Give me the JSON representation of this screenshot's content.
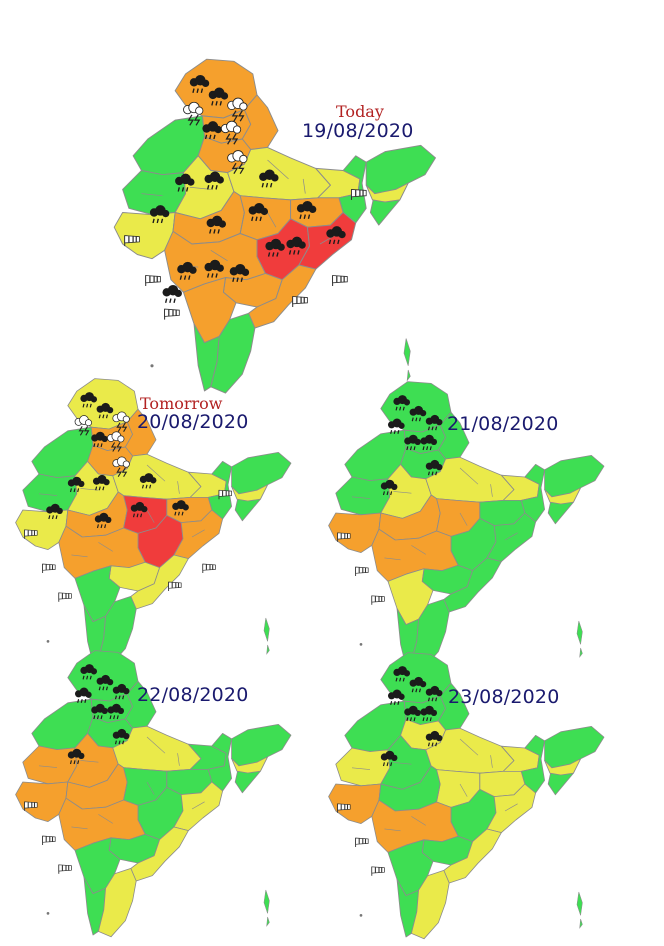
{
  "colors": {
    "green": "#3ede53",
    "yellow": "#eaea4a",
    "orange": "#f5a02d",
    "red": "#f03c3c",
    "border": "#8c8c8c",
    "date_text": "#1a1a6e",
    "today_text": "#b22222"
  },
  "icons": [
    "rain-cloud-icon",
    "thunderstorm-cloud-icon",
    "windsock-icon"
  ],
  "maps": [
    {
      "label": "Today",
      "date": "19/08/2020",
      "regions": {
        "kashmir": "orange",
        "himachal": "orange",
        "punjab": "green",
        "uttarakhand": "orange",
        "haryana_delhi": "orange",
        "rajasthan_w": "green",
        "rajasthan_e": "yellow",
        "up": "yellow",
        "bihar": "yellow",
        "sikkim_wb": "green",
        "gujarat": "yellow",
        "mp_w": "orange",
        "mp_e": "orange",
        "jharkhand": "orange",
        "chhattisgarh": "red",
        "odisha": "red",
        "maharashtra": "orange",
        "telangana": "orange",
        "andhra": "orange",
        "karnataka": "orange",
        "kerala": "green",
        "tamilnadu": "green",
        "northeast": "green",
        "assam_band": "yellow"
      }
    },
    {
      "label": "Tomorrow",
      "date": "20/08/2020",
      "regions": {
        "kashmir": "yellow",
        "himachal": "orange",
        "punjab": "green",
        "uttarakhand": "orange",
        "haryana_delhi": "orange",
        "rajasthan_w": "green",
        "rajasthan_e": "yellow",
        "up": "yellow",
        "bihar": "yellow",
        "sikkim_wb": "green",
        "gujarat": "yellow",
        "mp_w": "orange",
        "mp_e": "red",
        "jharkhand": "orange",
        "chhattisgarh": "red",
        "odisha": "orange",
        "maharashtra": "orange",
        "telangana": "yellow",
        "andhra": "yellow",
        "karnataka": "green",
        "kerala": "green",
        "tamilnadu": "green",
        "northeast": "green",
        "assam_band": "yellow"
      }
    },
    {
      "label": "",
      "date": "21/08/2020",
      "regions": {
        "kashmir": "green",
        "himachal": "green",
        "punjab": "green",
        "uttarakhand": "green",
        "haryana_delhi": "green",
        "rajasthan_w": "green",
        "rajasthan_e": "yellow",
        "up": "yellow",
        "bihar": "yellow",
        "sikkim_wb": "green",
        "gujarat": "orange",
        "mp_w": "orange",
        "mp_e": "orange",
        "jharkhand": "green",
        "chhattisgarh": "green",
        "odisha": "green",
        "maharashtra": "orange",
        "telangana": "green",
        "andhra": "green",
        "karnataka": "yellow",
        "kerala": "green",
        "tamilnadu": "green",
        "northeast": "green",
        "assam_band": "yellow"
      }
    },
    {
      "label": "",
      "date": "22/08/2020",
      "regions": {
        "kashmir": "green",
        "himachal": "green",
        "punjab": "green",
        "uttarakhand": "green",
        "haryana_delhi": "green",
        "rajasthan_w": "orange",
        "rajasthan_e": "orange",
        "up": "yellow",
        "bihar": "green",
        "sikkim_wb": "green",
        "gujarat": "orange",
        "mp_w": "orange",
        "mp_e": "green",
        "jharkhand": "green",
        "chhattisgarh": "green",
        "odisha": "yellow",
        "maharashtra": "orange",
        "telangana": "green",
        "andhra": "yellow",
        "karnataka": "green",
        "kerala": "green",
        "tamilnadu": "yellow",
        "northeast": "green",
        "assam_band": "yellow"
      }
    },
    {
      "label": "",
      "date": "23/08/2020",
      "regions": {
        "kashmir": "green",
        "himachal": "green",
        "punjab": "green",
        "uttarakhand": "green",
        "haryana_delhi": "yellow",
        "rajasthan_w": "yellow",
        "rajasthan_e": "green",
        "up": "yellow",
        "bihar": "yellow",
        "sikkim_wb": "green",
        "gujarat": "orange",
        "mp_w": "green",
        "mp_e": "yellow",
        "jharkhand": "yellow",
        "chhattisgarh": "green",
        "odisha": "yellow",
        "maharashtra": "orange",
        "telangana": "green",
        "andhra": "yellow",
        "karnataka": "green",
        "kerala": "green",
        "tamilnadu": "yellow",
        "northeast": "green",
        "assam_band": "yellow"
      }
    }
  ]
}
